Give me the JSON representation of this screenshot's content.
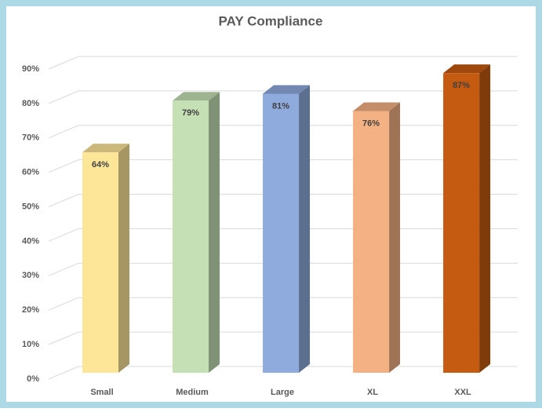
{
  "chart_data": {
    "type": "bar3d",
    "title": "PAY Compliance",
    "categories": [
      "Small",
      "Medium",
      "Large",
      "XL",
      "XXL"
    ],
    "values": [
      64,
      79,
      81,
      76,
      87
    ],
    "value_labels": [
      "64%",
      "79%",
      "81%",
      "76%",
      "87%"
    ],
    "colors": [
      "#fee699",
      "#c5e0b4",
      "#8faadc",
      "#f4b183",
      "#c55a11"
    ],
    "ylim": [
      0,
      90
    ],
    "yticks": [
      {
        "value": 0,
        "label": "0%"
      },
      {
        "value": 10,
        "label": "10%"
      },
      {
        "value": 20,
        "label": "20%"
      },
      {
        "value": 30,
        "label": "30%"
      },
      {
        "value": 40,
        "label": "40%"
      },
      {
        "value": 50,
        "label": "50%"
      },
      {
        "value": 60,
        "label": "60%"
      },
      {
        "value": 70,
        "label": "70%"
      },
      {
        "value": 80,
        "label": "80%"
      },
      {
        "value": 90,
        "label": "90%"
      }
    ],
    "grid": true
  }
}
